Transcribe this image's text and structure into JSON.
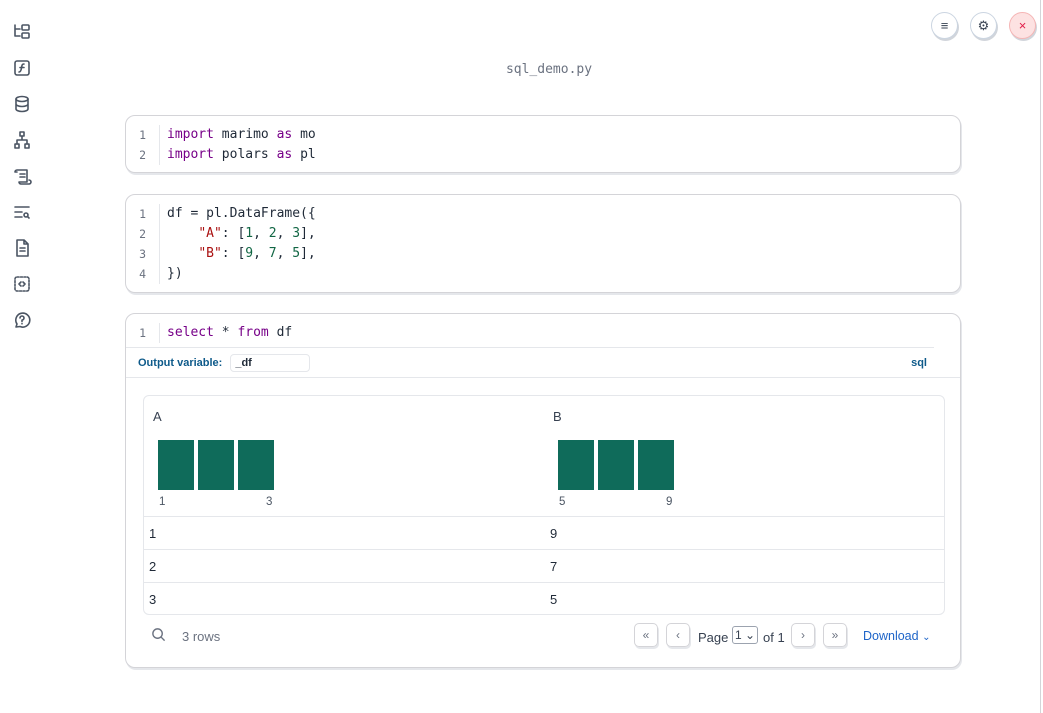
{
  "app": {
    "filename": "sql_demo.py"
  },
  "sidebar": {
    "items": [
      "file-explorer-icon",
      "functions-icon",
      "datasources-icon",
      "dependencies-icon",
      "logs-icon",
      "search-outline-icon",
      "documentation-icon",
      "snippets-icon",
      "help-icon"
    ]
  },
  "toolbar": {
    "menu_icon": "≡",
    "settings_icon": "⚙",
    "close_icon": "×"
  },
  "cells": [
    {
      "lines": [
        "1",
        "2"
      ]
    },
    {
      "lines": [
        "1",
        "2",
        "3",
        "4"
      ]
    },
    {
      "lines": [
        "1"
      ]
    }
  ],
  "sql_cell": {
    "output_variable_label": "Output variable:",
    "output_variable": "_df",
    "language": "sql"
  },
  "table": {
    "columns": [
      {
        "name": "A",
        "min": "1",
        "max": "3"
      },
      {
        "name": "B",
        "min": "5",
        "max": "9"
      }
    ],
    "rows": [
      [
        "1",
        "9"
      ],
      [
        "2",
        "7"
      ],
      [
        "3",
        "5"
      ]
    ],
    "bar_color": "#0f6b5a",
    "row_count": "3 rows",
    "page_label": "Page",
    "page": "1",
    "of_label": "of 1",
    "download": "Download"
  }
}
